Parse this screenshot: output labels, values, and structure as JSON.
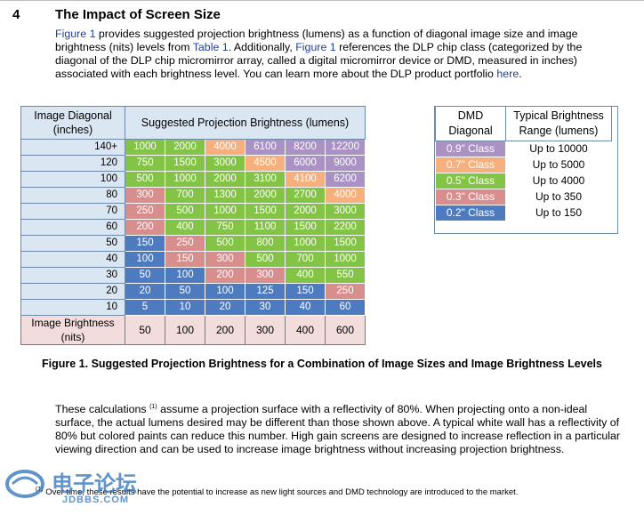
{
  "section": {
    "number": "4",
    "title": "The Impact of Screen Size"
  },
  "intro": {
    "p1": "Figure 1",
    "p2": " provides suggested projection brightness (lumens) as a function of diagonal image size and image brightness (nits) levels from ",
    "p3": "Table 1",
    "p4": ". Additionally, ",
    "p5": "Figure 1",
    "p6": " references the DLP chip class (categorized by the diagonal of the DLP chip micromirror array, called a digital micromirror device or DMD, measured in inches) associated with each brightness level. You can learn more about the DLP product portfolio ",
    "p7": "here",
    "p8": "."
  },
  "main_table": {
    "corner_header": "Image Diagonal (inches)",
    "group_header": "Suggested Projection Brightness (lumens)",
    "rows": [
      {
        "label": "140+",
        "values": [
          "1000",
          "2000",
          "4000",
          "6100",
          "8200",
          "12200"
        ],
        "classes": [
          "c05",
          "c05",
          "c07",
          "c09",
          "c09",
          "c09"
        ]
      },
      {
        "label": "120",
        "values": [
          "750",
          "1500",
          "3000",
          "4500",
          "6000",
          "9000"
        ],
        "classes": [
          "c05",
          "c05",
          "c05",
          "c07",
          "c09",
          "c09"
        ]
      },
      {
        "label": "100",
        "values": [
          "500",
          "1000",
          "2000",
          "3100",
          "4100",
          "6200"
        ],
        "classes": [
          "c05",
          "c05",
          "c05",
          "c05",
          "c07",
          "c09"
        ]
      },
      {
        "label": "80",
        "values": [
          "300",
          "700",
          "1300",
          "2000",
          "2700",
          "4000"
        ],
        "classes": [
          "c03",
          "c05",
          "c05",
          "c05",
          "c05",
          "c07"
        ]
      },
      {
        "label": "70",
        "values": [
          "250",
          "500",
          "1000",
          "1500",
          "2000",
          "3000"
        ],
        "classes": [
          "c03",
          "c05",
          "c05",
          "c05",
          "c05",
          "c05"
        ]
      },
      {
        "label": "60",
        "values": [
          "200",
          "400",
          "750",
          "1100",
          "1500",
          "2200"
        ],
        "classes": [
          "c03",
          "c05",
          "c05",
          "c05",
          "c05",
          "c05"
        ]
      },
      {
        "label": "50",
        "values": [
          "150",
          "250",
          "500",
          "800",
          "1000",
          "1500"
        ],
        "classes": [
          "c02",
          "c03",
          "c05",
          "c05",
          "c05",
          "c05"
        ]
      },
      {
        "label": "40",
        "values": [
          "100",
          "150",
          "300",
          "500",
          "700",
          "1000"
        ],
        "classes": [
          "c02",
          "c03",
          "c03",
          "c05",
          "c05",
          "c05"
        ]
      },
      {
        "label": "30",
        "values": [
          "50",
          "100",
          "200",
          "300",
          "400",
          "550"
        ],
        "classes": [
          "c02",
          "c02",
          "c03",
          "c03",
          "c05",
          "c05"
        ]
      },
      {
        "label": "20",
        "values": [
          "20",
          "50",
          "100",
          "125",
          "150",
          "250"
        ],
        "classes": [
          "c02",
          "c02",
          "c02",
          "c02",
          "c02",
          "c03"
        ]
      },
      {
        "label": "10",
        "values": [
          "5",
          "10",
          "20",
          "30",
          "40",
          "60"
        ],
        "classes": [
          "c02",
          "c02",
          "c02",
          "c02",
          "c02",
          "c02"
        ]
      }
    ],
    "bottom_label": "Image Brightness (nits)",
    "nits": [
      "50",
      "100",
      "200",
      "300",
      "400",
      "600"
    ]
  },
  "dmd_table": {
    "header_left": "DMD Diagonal",
    "header_right": "Typical Brightness Range (lumens)",
    "rows": [
      {
        "cls": "0.9\" Class",
        "range": "Up to 10000",
        "color": "#ab92c5"
      },
      {
        "cls": "0.7\" Class",
        "range": "Up to 5000",
        "color": "#f5b07e"
      },
      {
        "cls": "0.5\" Class",
        "range": "Up to 4000",
        "color": "#83c447"
      },
      {
        "cls": "0.3\" Class",
        "range": "Up to 350",
        "color": "#d98e8e"
      },
      {
        "cls": "0.2\" Class",
        "range": "Up to 150",
        "color": "#4e7bbf"
      }
    ]
  },
  "caption": "Figure 1. Suggested Projection Brightness for a Combination of Image Sizes and Image Brightness Levels",
  "body": {
    "a": "These calculations ",
    "sup": "(1)",
    "b": " assume a projection surface with a reflectivity of 80%. When projecting onto a non-ideal surface, the actual lumens desired may be different than those shown above. A typical white wall has a reflectivity of 80% but colored paints can reduce this number. High gain screens are designed to increase reflection in a particular viewing direction and can be used to increase image brightness without increasing projection brightness."
  },
  "footnote": {
    "mark": "(1)",
    "text": " Over time, these results have the potential to increase as new light sources and DMD technology are introduced to the market."
  },
  "watermark": {
    "cn": "电子论坛",
    "en": "JDBBS.COM"
  },
  "colors": {
    "link": "#1f3f9f",
    "class_0_9": "#ab92c5",
    "class_0_7": "#f5b07e",
    "class_0_5": "#83c447",
    "class_0_3": "#d98e8e",
    "class_0_2": "#4e7bbf"
  }
}
